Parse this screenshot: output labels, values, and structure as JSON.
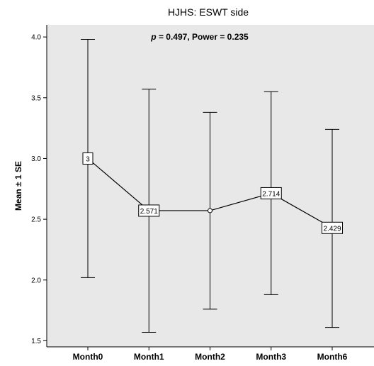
{
  "chart_data": {
    "type": "line",
    "title": "HJHS: ESWT side",
    "annotation": {
      "p_symbol": "p",
      "rest": " = 0.497, Power = 0.235"
    },
    "ylabel": "Mean ± 1 SE",
    "xlabel": "",
    "ylim": [
      1.45,
      4.1
    ],
    "yticks": [
      "1.5",
      "2.0",
      "2.5",
      "3.0",
      "3.5",
      "4.0"
    ],
    "ytick_values": [
      1.5,
      2.0,
      2.5,
      3.0,
      3.5,
      4.0
    ],
    "categories": [
      "Month0",
      "Month1",
      "Month2",
      "Month3",
      "Month6"
    ],
    "series": [
      {
        "values": [
          3.0,
          2.571,
          2.571,
          2.714,
          2.429
        ],
        "data_labels": [
          "3",
          "2.571",
          "",
          "2.714",
          "2.429"
        ],
        "error_low": [
          2.02,
          1.57,
          1.76,
          1.88,
          1.61
        ],
        "error_high": [
          3.98,
          3.57,
          3.38,
          3.55,
          3.24
        ]
      }
    ],
    "grid": false,
    "legend": "none",
    "colors": {
      "plot_background": "#e8e8e8",
      "line": "#000000",
      "label_box_fill": "#ffffff"
    }
  }
}
